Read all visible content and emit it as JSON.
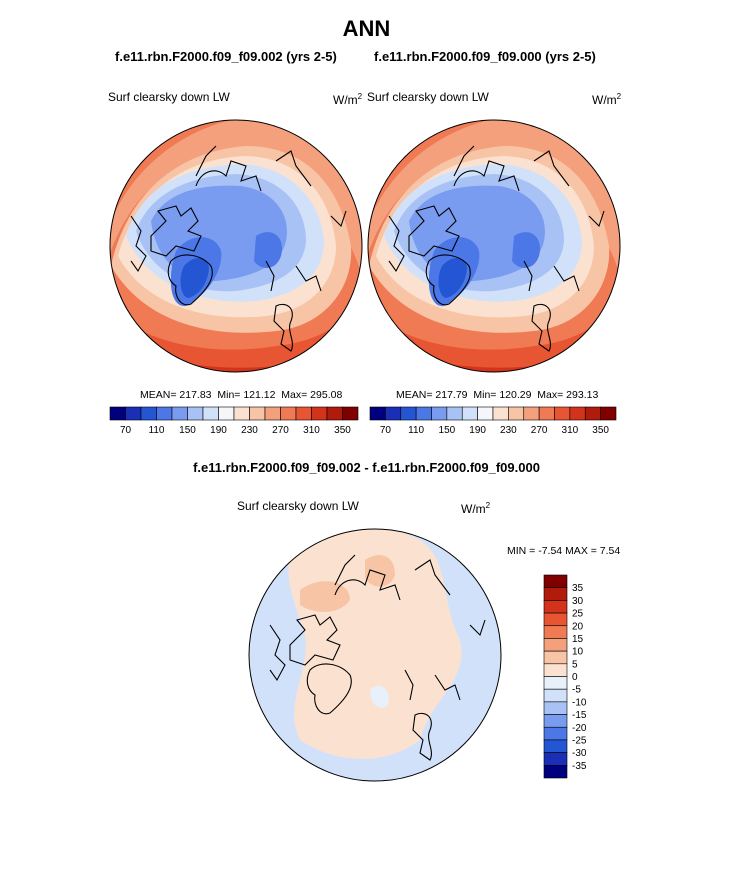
{
  "title": "ANN",
  "panels": [
    {
      "case": "f.e11.rbn.F2000.f09_f09.002 (yrs 2-5)",
      "variable": "Surf clearsky down LW",
      "units": "W/m",
      "units_exp": "2",
      "mean": "MEAN= 217.83",
      "min": "Min= 121.12",
      "max": "Max= 295.08"
    },
    {
      "case": "f.e11.rbn.F2000.f09_f09.000 (yrs 2-5)",
      "variable": "Surf clearsky down LW",
      "units": "W/m",
      "units_exp": "2",
      "mean": "MEAN= 217.79",
      "min": "Min= 120.29",
      "max": "Max= 293.13"
    }
  ],
  "diff": {
    "title": "f.e11.rbn.F2000.f09_f09.002 - f.e11.rbn.F2000.f09_f09.000",
    "variable": "Surf clearsky down LW",
    "units": "W/m",
    "units_exp": "2",
    "minmax": "MIN =  -7.54 MAX =   7.54"
  },
  "chart_data": [
    {
      "type": "heatmap",
      "projection": "north polar stereographic",
      "title": "f.e11.rbn.F2000.f09_f09.002 (yrs 2-5)",
      "variable": "Surf clearsky down LW",
      "units": "W/m2",
      "mean": 217.83,
      "min": 121.12,
      "max": 295.08,
      "colorbar_ticks": [
        70,
        110,
        150,
        190,
        230,
        270,
        310,
        350
      ],
      "colorbar_colors": [
        "#00007f",
        "#1b2fb6",
        "#2456d4",
        "#4b78e6",
        "#7a9cf0",
        "#a9c2f6",
        "#d2e1fa",
        "#f4f6fa",
        "#fbe2d0",
        "#f8c4a6",
        "#f4a07c",
        "#ef7a54",
        "#e85532",
        "#d2331a",
        "#b01b0c",
        "#800000"
      ]
    },
    {
      "type": "heatmap",
      "projection": "north polar stereographic",
      "title": "f.e11.rbn.F2000.f09_f09.000 (yrs 2-5)",
      "variable": "Surf clearsky down LW",
      "units": "W/m2",
      "mean": 217.79,
      "min": 120.29,
      "max": 293.13,
      "colorbar_ticks": [
        70,
        110,
        150,
        190,
        230,
        270,
        310,
        350
      ],
      "colorbar_colors": [
        "#00007f",
        "#1b2fb6",
        "#2456d4",
        "#4b78e6",
        "#7a9cf0",
        "#a9c2f6",
        "#d2e1fa",
        "#f4f6fa",
        "#fbe2d0",
        "#f8c4a6",
        "#f4a07c",
        "#ef7a54",
        "#e85532",
        "#d2331a",
        "#b01b0c",
        "#800000"
      ]
    },
    {
      "type": "heatmap",
      "projection": "north polar stereographic",
      "title": "f.e11.rbn.F2000.f09_f09.002 - f.e11.rbn.F2000.f09_f09.000",
      "variable": "Surf clearsky down LW",
      "units": "W/m2",
      "min": -7.54,
      "max": 7.54,
      "colorbar_ticks": [
        35,
        30,
        25,
        20,
        15,
        10,
        5,
        0,
        -5,
        -10,
        -15,
        -20,
        -25,
        -30,
        -35
      ],
      "colorbar_colors": [
        "#800000",
        "#b01b0c",
        "#d2331a",
        "#e85532",
        "#ef7a54",
        "#f4a07c",
        "#f8c4a6",
        "#fbe2d0",
        "#e8f1fa",
        "#d2e1fa",
        "#a9c2f6",
        "#7a9cf0",
        "#4b78e6",
        "#2456d4",
        "#1b2fb6",
        "#00007f"
      ]
    }
  ]
}
